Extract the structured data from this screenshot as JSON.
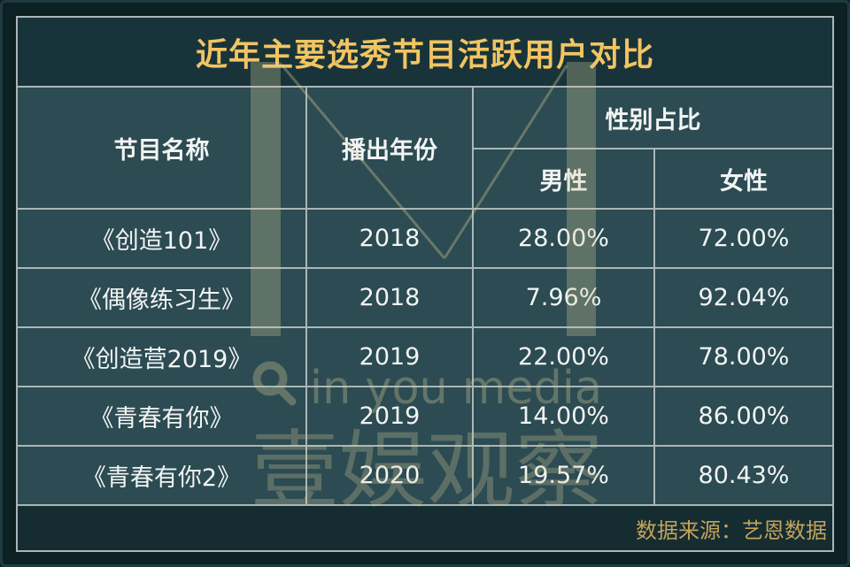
{
  "colors": {
    "page_background": "#0d2024",
    "title_background": "#18343a",
    "cell_background": "#2c4b52",
    "footer_background": "#152c31",
    "grid_line": "#aab6b8",
    "title_text": "#f2c462",
    "body_text": "#f2f4f4",
    "source_text": "#c3a35b",
    "watermark": "#d8cd9c"
  },
  "watermark": {
    "tagline": "in you media",
    "brand": "壹娱观察"
  },
  "chart_data": {
    "type": "table",
    "title": "近年主要选秀节目活跃用户对比",
    "header": {
      "name": "节目名称",
      "year": "播出年份",
      "gender_ratio": "性别占比",
      "male": "男性",
      "female": "女性"
    },
    "rows": [
      {
        "name": "《创造101》",
        "year": "2018",
        "male": "28.00%",
        "female": "72.00%"
      },
      {
        "name": "《偶像练习生》",
        "year": "2018",
        "male": "7.96%",
        "female": "92.04%"
      },
      {
        "name": "《创造营2019》",
        "year": "2019",
        "male": "22.00%",
        "female": "78.00%"
      },
      {
        "name": "《青春有你》",
        "year": "2019",
        "male": "14.00%",
        "female": "86.00%"
      },
      {
        "name": "《青春有你2》",
        "year": "2020",
        "male": "19.57%",
        "female": "80.43%"
      }
    ],
    "source": "数据来源：艺恩数据"
  }
}
